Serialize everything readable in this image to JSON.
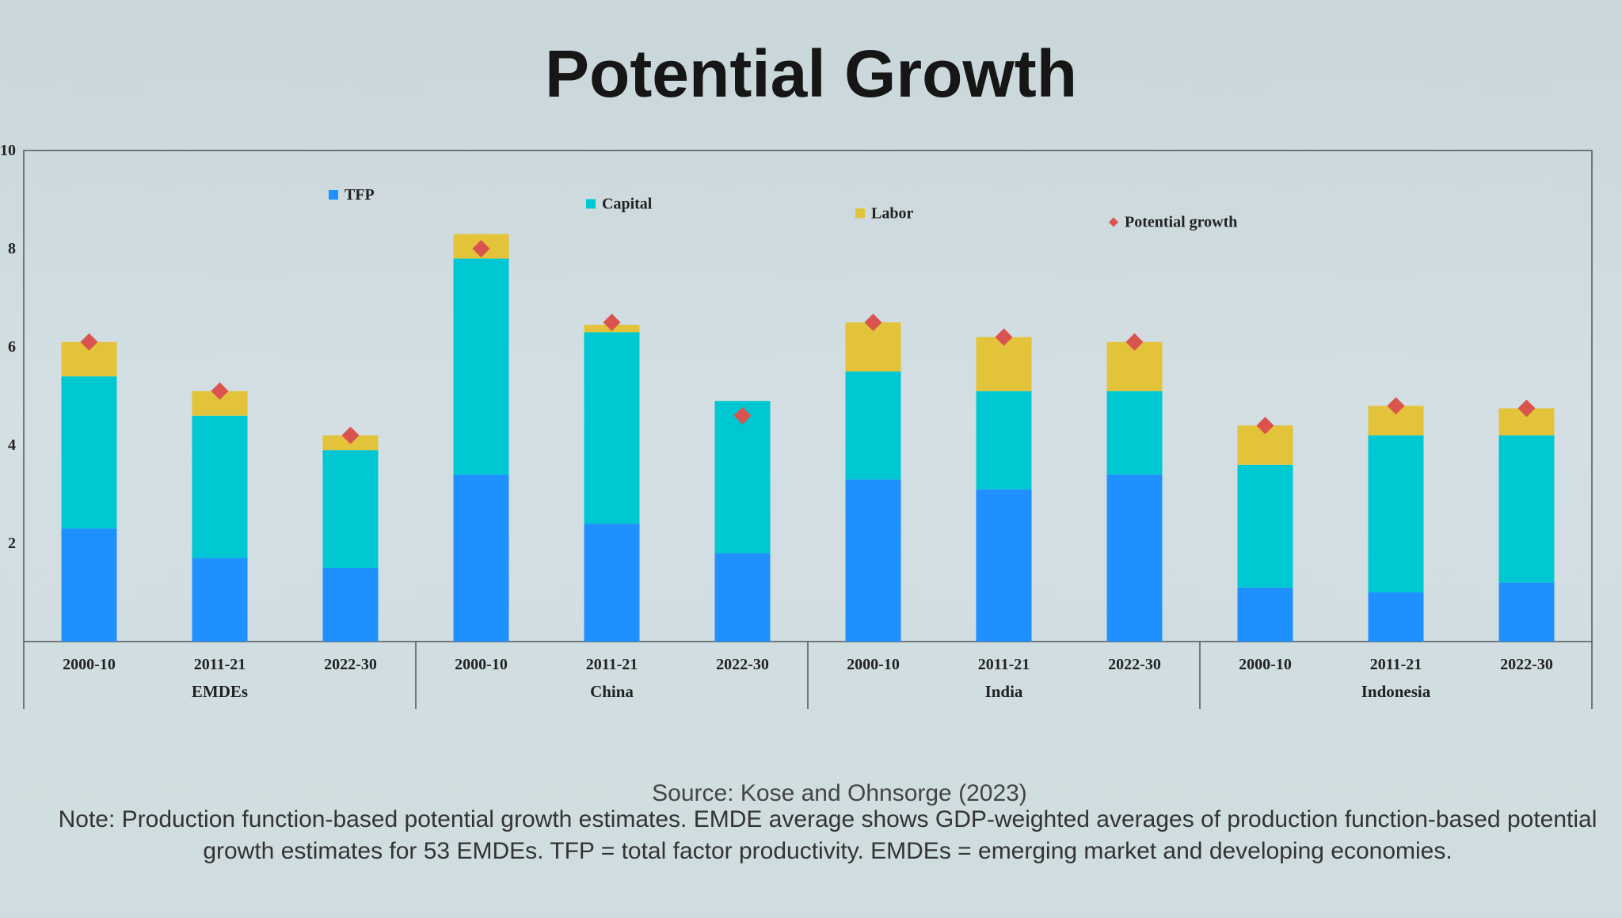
{
  "slide": {
    "title": "Potential Growth",
    "source": "Source: Kose and Ohnsorge (2023)",
    "note": "Note: Production function-based potential growth estimates. EMDE average shows GDP-weighted averages of production function-based potential growth estimates for 53 EMDEs. TFP = total factor productivity. EMDEs = emerging market and developing economies."
  },
  "colors": {
    "tfp": "#1e90ff",
    "capital": "#00c8d2",
    "labor": "#e3c33a",
    "potential": "#d9534f"
  },
  "chart_data": {
    "type": "bar",
    "stacked": true,
    "title": "",
    "ylim": [
      0,
      10
    ],
    "yticks": [
      "2",
      "4",
      "6",
      "8",
      "10"
    ],
    "grid": false,
    "legend_position": "top",
    "groups": [
      "EMDEs",
      "China",
      "India",
      "Indonesia"
    ],
    "categories": [
      "2000-10",
      "2011-21",
      "2022-30",
      "2000-10",
      "2011-21",
      "2022-30",
      "2000-10",
      "2011-21",
      "2022-30",
      "2000-10",
      "2011-21",
      "2022-30"
    ],
    "series": [
      {
        "name": "TFP",
        "values": [
          2.3,
          1.7,
          1.5,
          3.4,
          2.4,
          1.8,
          3.3,
          3.1,
          3.4,
          1.1,
          1.0,
          1.2
        ]
      },
      {
        "name": "Capital",
        "values": [
          3.1,
          2.9,
          2.4,
          4.4,
          3.9,
          3.1,
          2.2,
          2.0,
          1.7,
          2.5,
          3.2,
          3.0
        ]
      },
      {
        "name": "Labor",
        "values": [
          0.7,
          0.5,
          0.3,
          0.5,
          0.15,
          0.0,
          1.0,
          1.1,
          1.0,
          0.8,
          0.6,
          0.55
        ]
      },
      {
        "name": "Potential growth",
        "type": "marker",
        "values": [
          6.1,
          5.1,
          4.2,
          8.0,
          6.5,
          4.6,
          6.5,
          6.2,
          6.1,
          4.4,
          4.8,
          4.75
        ]
      }
    ]
  }
}
